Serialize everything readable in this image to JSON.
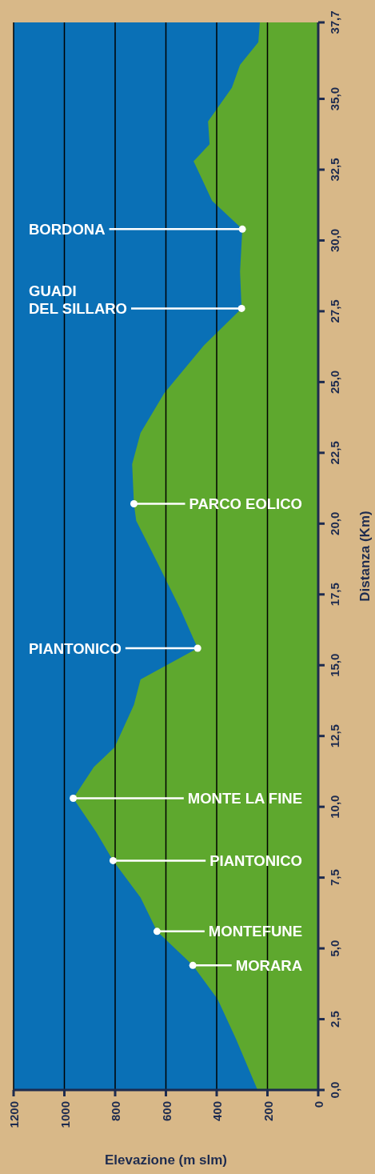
{
  "chart_data": {
    "type": "area",
    "orientation": "horizontal",
    "xlabel": "Elevazione (m slm)",
    "ylabel": "Distanza (Km)",
    "series": [
      {
        "color": "#5ea82e",
        "values": [
          239,
          324,
          396,
          494,
          635,
          700,
          808,
          874,
          965,
          884,
          802,
          726,
          700,
          475,
          544,
          638,
          717,
          726,
          733,
          700,
          607,
          450,
          302,
          308,
          299,
          418,
          491,
          428,
          434,
          340,
          308,
          236,
          230
        ],
        "x": [
          0,
          1.8,
          3.2,
          4.4,
          5.6,
          6.8,
          8.1,
          9.1,
          10.3,
          11.4,
          12.1,
          13.6,
          14.5,
          15.6,
          17.0,
          18.7,
          20.1,
          20.7,
          22.1,
          23.2,
          24.6,
          26.3,
          27.6,
          28.9,
          30.4,
          31.4,
          32.8,
          33.4,
          34.2,
          35.4,
          36.2,
          37.0,
          37.7
        ]
      }
    ],
    "ylim": [
      0,
      37.7
    ],
    "yticks": [
      {
        "value": 0,
        "label": "0,0"
      },
      {
        "value": 2.5,
        "label": "2,5"
      },
      {
        "value": 5,
        "label": "5,0"
      },
      {
        "value": 7.5,
        "label": "7,5"
      },
      {
        "value": 10,
        "label": "10,0"
      },
      {
        "value": 12.5,
        "label": "12,5"
      },
      {
        "value": 15,
        "label": "15,0"
      },
      {
        "value": 17.5,
        "label": "17,5"
      },
      {
        "value": 20,
        "label": "20,0"
      },
      {
        "value": 22.5,
        "label": "22,5"
      },
      {
        "value": 25,
        "label": "25,0"
      },
      {
        "value": 27.5,
        "label": "27,5"
      },
      {
        "value": 30,
        "label": "30,0"
      },
      {
        "value": 32.5,
        "label": "32,5"
      },
      {
        "value": 35,
        "label": "35,0"
      },
      {
        "value": 37.7,
        "label": "37,7"
      }
    ],
    "xlim": [
      1200,
      0
    ],
    "xticks": [
      1200,
      1000,
      800,
      600,
      400,
      200,
      0
    ],
    "grid": "x",
    "annotations": [
      {
        "text": "BORDONA",
        "x": 299,
        "y": 30.4
      },
      {
        "text": "GUADI\nDEL SILLARO",
        "x": 302,
        "y": 27.6
      },
      {
        "text": "PARCO EOLICO",
        "x": 726,
        "y": 20.7
      },
      {
        "text": "PIANTONICO",
        "x": 475,
        "y": 15.6
      },
      {
        "text": "MONTE LA FINE",
        "x": 965,
        "y": 10.3
      },
      {
        "text": "PIANTONICO",
        "x": 808,
        "y": 8.1
      },
      {
        "text": "MONTEFUNE",
        "x": 635,
        "y": 5.6
      },
      {
        "text": "MORARA",
        "x": 494,
        "y": 4.4
      }
    ]
  }
}
